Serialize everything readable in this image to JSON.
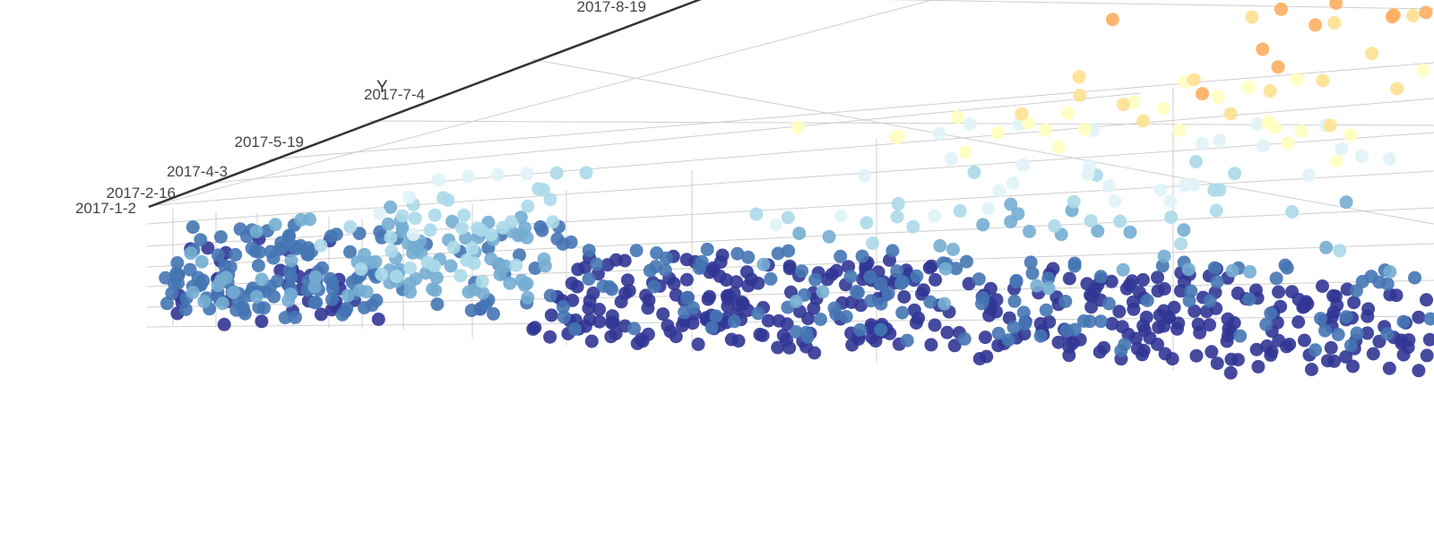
{
  "chart_data": {
    "type": "scatter",
    "subtype": "scatter3D",
    "title": "",
    "axes": {
      "y": {
        "name": "Y",
        "type": "category",
        "ticks": [
          "2017-1-2",
          "2017-2-16",
          "2017-4-3",
          "2017-5-19",
          "2017-7-4",
          "2017-8-19"
        ]
      }
    },
    "grid": true,
    "visual_map": {
      "dimension": "z",
      "colors": [
        "#313695",
        "#4575b4",
        "#74add1",
        "#abd9e9",
        "#e0f3f8",
        "#ffffbf",
        "#fee090",
        "#fdae61",
        "#f46d43"
      ]
    },
    "series": [
      {
        "name": "",
        "point_color_levels": "colors follow z value from low (dark blue) to high (orange-red)",
        "points": [
          [
            0.02,
            0.05,
            0.06
          ],
          [
            0.05,
            0.08,
            0.25
          ],
          [
            0.06,
            0.1,
            0.18
          ],
          [
            0.08,
            0.15,
            0.22
          ],
          [
            0.1,
            0.2,
            0.3
          ],
          [
            0.12,
            0.25,
            0.35
          ],
          [
            0.14,
            0.3,
            0.42
          ],
          [
            0.16,
            0.35,
            0.45
          ],
          [
            0.18,
            0.4,
            0.5
          ],
          [
            0.2,
            0.45,
            0.55
          ],
          [
            0.22,
            0.5,
            0.52
          ],
          [
            0.24,
            0.55,
            0.48
          ],
          [
            0.26,
            0.6,
            0.44
          ],
          [
            0.28,
            0.65,
            0.4
          ],
          [
            0.3,
            0.7,
            0.36
          ],
          [
            0.32,
            0.1,
            0.12
          ],
          [
            0.35,
            0.2,
            0.15
          ],
          [
            0.38,
            0.3,
            0.18
          ],
          [
            0.41,
            0.4,
            0.14
          ],
          [
            0.44,
            0.5,
            0.1
          ],
          [
            0.47,
            0.15,
            0.08
          ],
          [
            0.5,
            0.25,
            0.1
          ],
          [
            0.53,
            0.35,
            0.12
          ],
          [
            0.56,
            0.45,
            0.09
          ],
          [
            0.59,
            0.55,
            0.07
          ],
          [
            0.62,
            0.2,
            0.3
          ],
          [
            0.65,
            0.3,
            0.45
          ],
          [
            0.68,
            0.4,
            0.6
          ],
          [
            0.7,
            0.5,
            0.72
          ],
          [
            0.72,
            0.6,
            0.85
          ],
          [
            0.74,
            0.65,
            0.95
          ],
          [
            0.76,
            0.7,
            0.9
          ],
          [
            0.78,
            0.55,
            0.65
          ],
          [
            0.8,
            0.45,
            0.5
          ],
          [
            0.82,
            0.35,
            0.4
          ],
          [
            0.85,
            0.25,
            0.2
          ],
          [
            0.88,
            0.3,
            0.35
          ],
          [
            0.9,
            0.4,
            0.55
          ],
          [
            0.93,
            0.5,
            0.7
          ],
          [
            0.96,
            0.6,
            0.8
          ]
        ]
      }
    ]
  }
}
